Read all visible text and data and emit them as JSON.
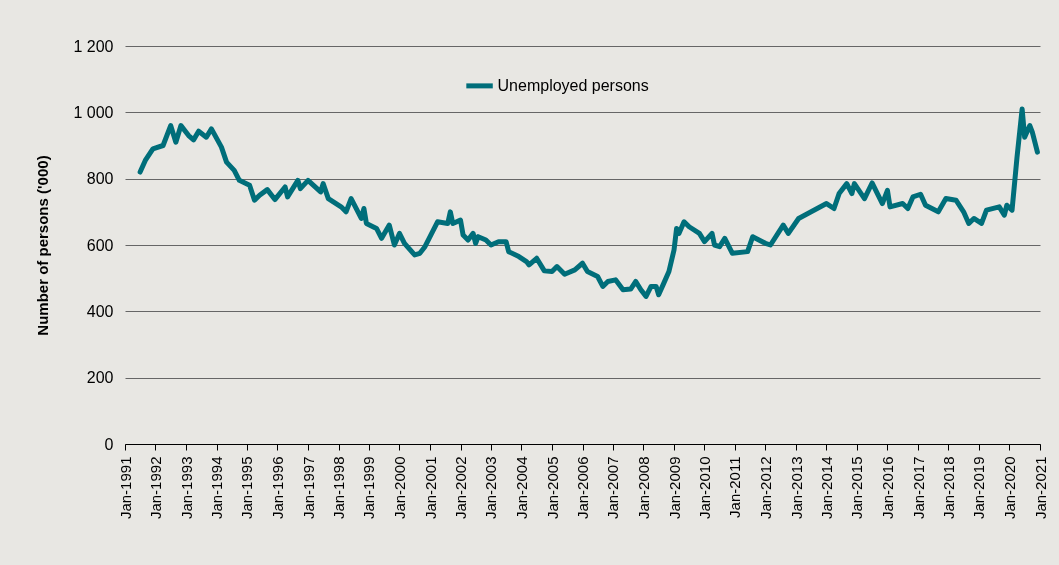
{
  "chart_data": {
    "type": "line",
    "ylabel": "Number of persons ('000)",
    "ylim": [
      0,
      1200
    ],
    "yticks": [
      {
        "value": 0,
        "label": "0"
      },
      {
        "value": 200,
        "label": "200"
      },
      {
        "value": 400,
        "label": "400"
      },
      {
        "value": 600,
        "label": "600"
      },
      {
        "value": 800,
        "label": "800"
      },
      {
        "value": 1000,
        "label": "1 000"
      },
      {
        "value": 1200,
        "label": "1 200"
      }
    ],
    "xlim": [
      "1991-01",
      "2021-01"
    ],
    "xticks": [
      {
        "value": "1991-01",
        "label": "Jan-1991"
      },
      {
        "value": "1992-01",
        "label": "Jan-1992"
      },
      {
        "value": "1993-01",
        "label": "Jan-1993"
      },
      {
        "value": "1994-01",
        "label": "Jan-1994"
      },
      {
        "value": "1995-01",
        "label": "Jan-1995"
      },
      {
        "value": "1996-01",
        "label": "Jan-1996"
      },
      {
        "value": "1997-01",
        "label": "Jan-1997"
      },
      {
        "value": "1998-01",
        "label": "Jan-1998"
      },
      {
        "value": "1999-01",
        "label": "Jan-1999"
      },
      {
        "value": "2000-01",
        "label": "Jan-2000"
      },
      {
        "value": "2001-01",
        "label": "Jan-2001"
      },
      {
        "value": "2002-01",
        "label": "Jan-2002"
      },
      {
        "value": "2003-01",
        "label": "Jan-2003"
      },
      {
        "value": "2004-01",
        "label": "Jan-2004"
      },
      {
        "value": "2005-01",
        "label": "Jan-2005"
      },
      {
        "value": "2006-01",
        "label": "Jan-2006"
      },
      {
        "value": "2007-01",
        "label": "Jan-2007"
      },
      {
        "value": "2008-01",
        "label": "Jan-2008"
      },
      {
        "value": "2009-01",
        "label": "Jan-2009"
      },
      {
        "value": "2010-01",
        "label": "Jan-2010"
      },
      {
        "value": "2011-01",
        "label": "Jan-2011"
      },
      {
        "value": "2012-01",
        "label": "Jan-2012"
      },
      {
        "value": "2013-01",
        "label": "Jan-2013"
      },
      {
        "value": "2014-01",
        "label": "Jan-2014"
      },
      {
        "value": "2015-01",
        "label": "Jan-2015"
      },
      {
        "value": "2016-01",
        "label": "Jan-2016"
      },
      {
        "value": "2017-01",
        "label": "Jan-2017"
      },
      {
        "value": "2018-01",
        "label": "Jan-2018"
      },
      {
        "value": "2019-01",
        "label": "Jan-2019"
      },
      {
        "value": "2020-01",
        "label": "Jan-2020"
      },
      {
        "value": "2021-01",
        "label": "Jan-2021"
      }
    ],
    "grid": "y",
    "legend": "top",
    "x": [
      "1991-07",
      "1991-09",
      "1991-12",
      "1992-04",
      "1992-07",
      "1992-09",
      "1992-11",
      "1993-02",
      "1993-04",
      "1993-06",
      "1993-09",
      "1993-11",
      "1994-03",
      "1994-05",
      "1994-08",
      "1994-10",
      "1995-02",
      "1995-04",
      "1995-06",
      "1995-09",
      "1995-12",
      "1996-04",
      "1996-05",
      "1996-09",
      "1996-10",
      "1997-01",
      "1997-06",
      "1997-07",
      "1997-09",
      "1998-02",
      "1998-04",
      "1998-06",
      "1998-10",
      "1998-11",
      "1998-12",
      "1999-04",
      "1999-06",
      "1999-09",
      "1999-11",
      "2000-01",
      "2000-03",
      "2000-07",
      "2000-09",
      "2000-11",
      "2001-01",
      "2001-04",
      "2001-08",
      "2001-09",
      "2001-10",
      "2002-01",
      "2002-02",
      "2002-04",
      "2002-06",
      "2002-07",
      "2002-08",
      "2002-11",
      "2003-01",
      "2003-04",
      "2003-07",
      "2003-08",
      "2003-12",
      "2004-03",
      "2004-04",
      "2004-07",
      "2004-10",
      "2005-01",
      "2005-03",
      "2005-06",
      "2005-10",
      "2006-01",
      "2006-03",
      "2006-07",
      "2006-09",
      "2006-11",
      "2007-02",
      "2007-05",
      "2007-08",
      "2007-10",
      "2007-12",
      "2008-02",
      "2008-04",
      "2008-06",
      "2008-07",
      "2008-09",
      "2008-11",
      "2009-01",
      "2009-02",
      "2009-03",
      "2009-05",
      "2009-07",
      "2009-11",
      "2010-01",
      "2010-04",
      "2010-05",
      "2010-07",
      "2010-09",
      "2010-12",
      "2011-06",
      "2011-08",
      "2012-01",
      "2012-03",
      "2012-08",
      "2012-10",
      "2013-02",
      "2013-07",
      "2014-01",
      "2014-04",
      "2014-06",
      "2014-09",
      "2014-11",
      "2014-12",
      "2015-04",
      "2015-07",
      "2015-11",
      "2016-01",
      "2016-02",
      "2016-07",
      "2016-09",
      "2016-11",
      "2017-02",
      "2017-04",
      "2017-09",
      "2017-12",
      "2018-04",
      "2018-07",
      "2018-09",
      "2018-11",
      "2019-02",
      "2019-04",
      "2019-09",
      "2019-11",
      "2019-12",
      "2020-02",
      "2020-04",
      "2020-06",
      "2020-07",
      "2020-09",
      "2020-10",
      "2020-12"
    ],
    "series": [
      {
        "name": "Unemployed persons",
        "color": "#006e7a",
        "values": [
          820,
          855,
          890,
          900,
          960,
          910,
          960,
          930,
          917,
          943,
          925,
          950,
          895,
          850,
          825,
          795,
          780,
          735,
          750,
          767,
          737,
          775,
          745,
          795,
          770,
          795,
          760,
          785,
          740,
          715,
          700,
          740,
          680,
          710,
          665,
          650,
          620,
          660,
          600,
          635,
          605,
          570,
          575,
          595,
          625,
          670,
          665,
          700,
          665,
          675,
          630,
          615,
          635,
          605,
          625,
          615,
          600,
          610,
          610,
          580,
          565,
          550,
          540,
          560,
          522,
          520,
          535,
          512,
          525,
          545,
          520,
          505,
          475,
          490,
          495,
          465,
          467,
          490,
          465,
          445,
          475,
          475,
          450,
          485,
          520,
          585,
          650,
          635,
          670,
          655,
          635,
          610,
          635,
          600,
          595,
          620,
          575,
          580,
          625,
          605,
          600,
          660,
          635,
          680,
          700,
          725,
          710,
          755,
          785,
          755,
          785,
          740,
          787,
          725,
          765,
          715,
          725,
          710,
          745,
          753,
          720,
          700,
          740,
          735,
          700,
          665,
          680,
          665,
          705,
          715,
          690,
          720,
          705,
          865,
          1010,
          925,
          960,
          940,
          880
        ]
      }
    ]
  }
}
